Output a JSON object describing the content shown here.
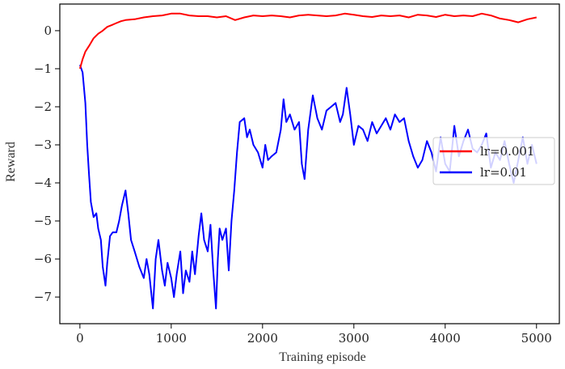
{
  "chart_data": {
    "type": "line",
    "title": "",
    "xlabel": "Training episode",
    "ylabel": "Reward",
    "xlim": [
      -220,
      5250
    ],
    "ylim": [
      -7.7,
      0.7
    ],
    "xticks": [
      0,
      1000,
      2000,
      3000,
      4000,
      5000
    ],
    "xtick_labels": [
      "0",
      "1000",
      "2000",
      "3000",
      "4000",
      "5000"
    ],
    "yticks": [
      0,
      -1,
      -2,
      -3,
      -4,
      -5,
      -6,
      -7
    ],
    "ytick_labels": [
      "0",
      "−1",
      "−2",
      "−3",
      "−4",
      "−5",
      "−6",
      "−7"
    ],
    "grid": false,
    "legend_position": "center-right",
    "series": [
      {
        "name": "lr=0.001",
        "color": "#ff0000",
        "x": [
          0,
          30,
          60,
          100,
          150,
          200,
          250,
          300,
          350,
          400,
          450,
          500,
          600,
          700,
          800,
          900,
          1000,
          1100,
          1200,
          1300,
          1400,
          1500,
          1600,
          1700,
          1800,
          1900,
          2000,
          2100,
          2200,
          2300,
          2400,
          2500,
          2600,
          2700,
          2800,
          2900,
          3000,
          3100,
          3200,
          3300,
          3400,
          3500,
          3600,
          3700,
          3800,
          3900,
          4000,
          4100,
          4200,
          4300,
          4400,
          4500,
          4600,
          4700,
          4800,
          4900,
          5000
        ],
        "y": [
          -1.0,
          -0.75,
          -0.55,
          -0.4,
          -0.2,
          -0.08,
          0.0,
          0.1,
          0.15,
          0.2,
          0.25,
          0.28,
          0.3,
          0.35,
          0.38,
          0.4,
          0.45,
          0.45,
          0.4,
          0.38,
          0.38,
          0.35,
          0.38,
          0.28,
          0.35,
          0.4,
          0.38,
          0.4,
          0.38,
          0.35,
          0.4,
          0.42,
          0.4,
          0.38,
          0.4,
          0.45,
          0.42,
          0.38,
          0.36,
          0.4,
          0.38,
          0.4,
          0.35,
          0.42,
          0.4,
          0.36,
          0.42,
          0.38,
          0.4,
          0.38,
          0.45,
          0.4,
          0.32,
          0.28,
          0.22,
          0.3,
          0.35
        ]
      },
      {
        "name": "lr=0.01",
        "color": "#0000ff",
        "x": [
          0,
          30,
          60,
          80,
          100,
          120,
          150,
          180,
          200,
          230,
          250,
          280,
          300,
          330,
          360,
          400,
          430,
          460,
          500,
          530,
          560,
          600,
          650,
          700,
          730,
          760,
          800,
          830,
          860,
          900,
          930,
          960,
          1000,
          1030,
          1060,
          1100,
          1130,
          1160,
          1200,
          1230,
          1260,
          1300,
          1330,
          1360,
          1400,
          1430,
          1460,
          1490,
          1510,
          1530,
          1560,
          1600,
          1630,
          1660,
          1690,
          1720,
          1750,
          1800,
          1830,
          1860,
          1900,
          1950,
          2000,
          2030,
          2060,
          2100,
          2150,
          2200,
          2230,
          2260,
          2300,
          2350,
          2400,
          2430,
          2460,
          2500,
          2550,
          2600,
          2650,
          2700,
          2750,
          2800,
          2850,
          2880,
          2920,
          2960,
          3000,
          3050,
          3100,
          3150,
          3200,
          3250,
          3300,
          3350,
          3400,
          3450,
          3500,
          3550,
          3600,
          3650,
          3700,
          3750,
          3800,
          3850,
          3900,
          3950,
          4000,
          4050,
          4100,
          4150,
          4200,
          4250,
          4300,
          4350,
          4400,
          4450,
          4500,
          4550,
          4600,
          4650,
          4700,
          4750,
          4800,
          4850,
          4900,
          4950,
          5000
        ],
        "y": [
          -0.9,
          -1.1,
          -1.9,
          -3.0,
          -3.8,
          -4.5,
          -4.9,
          -4.8,
          -5.2,
          -5.5,
          -6.2,
          -6.7,
          -6.1,
          -5.4,
          -5.3,
          -5.3,
          -5.0,
          -4.6,
          -4.2,
          -4.8,
          -5.5,
          -5.8,
          -6.2,
          -6.5,
          -6.0,
          -6.4,
          -7.3,
          -6.0,
          -5.5,
          -6.3,
          -6.7,
          -6.1,
          -6.5,
          -7.0,
          -6.4,
          -5.8,
          -6.9,
          -6.3,
          -6.6,
          -5.8,
          -6.4,
          -5.4,
          -4.8,
          -5.5,
          -5.8,
          -5.1,
          -6.3,
          -7.3,
          -6.0,
          -5.2,
          -5.5,
          -5.2,
          -6.3,
          -5.0,
          -4.2,
          -3.2,
          -2.4,
          -2.3,
          -2.8,
          -2.6,
          -3.0,
          -3.2,
          -3.6,
          -3.0,
          -3.4,
          -3.3,
          -3.2,
          -2.6,
          -1.8,
          -2.4,
          -2.2,
          -2.6,
          -2.4,
          -3.5,
          -3.9,
          -2.6,
          -1.7,
          -2.3,
          -2.6,
          -2.1,
          -2.0,
          -1.9,
          -2.4,
          -2.2,
          -1.5,
          -2.2,
          -3.0,
          -2.5,
          -2.6,
          -2.9,
          -2.4,
          -2.7,
          -2.5,
          -2.3,
          -2.6,
          -2.2,
          -2.4,
          -2.3,
          -2.9,
          -3.3,
          -3.6,
          -3.4,
          -2.9,
          -3.2,
          -3.7,
          -2.8,
          -3.5,
          -3.7,
          -2.5,
          -3.3,
          -2.9,
          -2.6,
          -3.1,
          -3.2,
          -3.0,
          -2.7,
          -3.6,
          -3.2,
          -3.4,
          -2.9,
          -3.5,
          -4.0,
          -3.4,
          -2.8,
          -3.5,
          -3.0,
          -3.5
        ]
      }
    ]
  }
}
